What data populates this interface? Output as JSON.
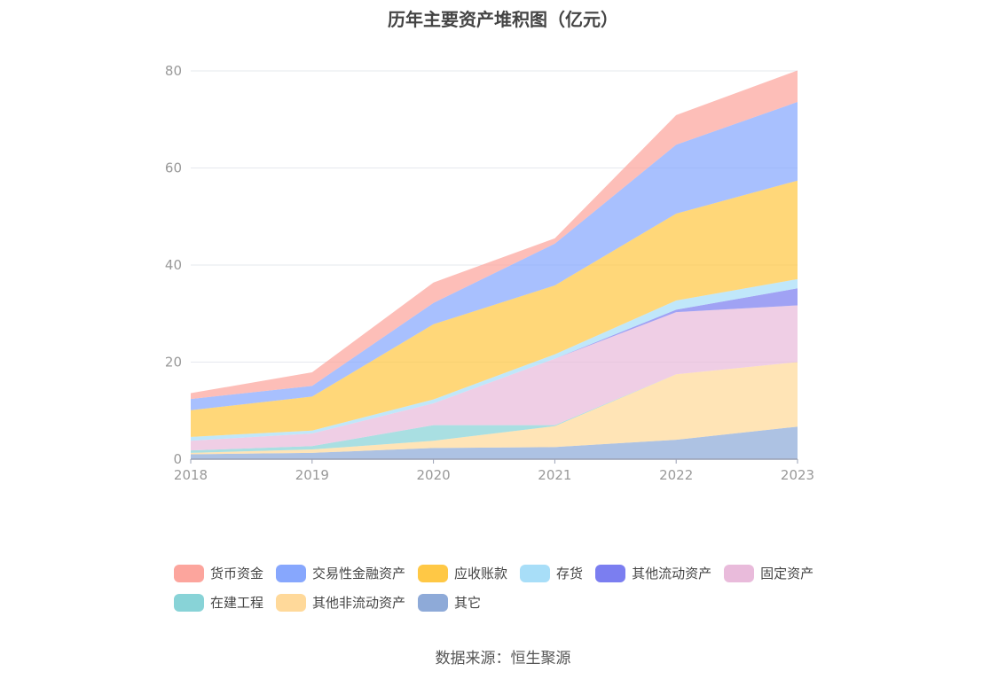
{
  "title": "历年主要资产堆积图（亿元）",
  "source": "数据来源：恒生聚源",
  "chart_data": {
    "type": "area",
    "stacked": true,
    "title": "历年主要资产堆积图（亿元）",
    "xlabel": "",
    "ylabel": "",
    "ylim": [
      0,
      80
    ],
    "yticks": [
      0,
      20,
      40,
      60,
      80
    ],
    "grid": true,
    "legend_position": "bottom",
    "categories": [
      "2018",
      "2019",
      "2020",
      "2021",
      "2022",
      "2023"
    ],
    "series": [
      {
        "name": "其它",
        "color": "#8eaad8",
        "values": [
          1.0,
          1.3,
          2.3,
          2.5,
          4.0,
          6.7
        ]
      },
      {
        "name": "其他非流动资产",
        "color": "#ffd99a",
        "values": [
          0.3,
          0.7,
          1.5,
          4.3,
          13.5,
          13.3
        ]
      },
      {
        "name": "在建工程",
        "color": "#88d3d7",
        "values": [
          0.5,
          0.7,
          3.2,
          0.2,
          0.0,
          0.0
        ]
      },
      {
        "name": "固定资产",
        "color": "#e9bbdb",
        "values": [
          2.0,
          2.6,
          4.5,
          13.7,
          12.8,
          11.7
        ]
      },
      {
        "name": "其他流动资产",
        "color": "#7b7ef0",
        "values": [
          0.0,
          0.0,
          0.0,
          0.0,
          0.5,
          3.5
        ]
      },
      {
        "name": "存货",
        "color": "#a8def8",
        "values": [
          0.8,
          0.6,
          0.8,
          0.9,
          1.9,
          1.9
        ]
      },
      {
        "name": "应收账款",
        "color": "#ffc845",
        "values": [
          5.5,
          7.0,
          15.5,
          14.2,
          17.9,
          20.3
        ]
      },
      {
        "name": "交易性金融资产",
        "color": "#87a7fd",
        "values": [
          2.3,
          2.2,
          4.4,
          8.6,
          14.2,
          16.2
        ]
      },
      {
        "name": "货币资金",
        "color": "#fca59d",
        "values": [
          1.2,
          2.8,
          4.2,
          1.1,
          6.1,
          6.5
        ]
      }
    ]
  },
  "legend": [
    [
      {
        "name": "货币资金",
        "color": "#fca59d"
      },
      {
        "name": "交易性金融资产",
        "color": "#87a7fd"
      },
      {
        "name": "应收账款",
        "color": "#ffc845"
      },
      {
        "name": "存货",
        "color": "#a8def8"
      },
      {
        "name": "其他流动资产",
        "color": "#7b7ef0"
      },
      {
        "name": "固定资产",
        "color": "#e9bbdb"
      }
    ],
    [
      {
        "name": "在建工程",
        "color": "#88d3d7"
      },
      {
        "name": "其他非流动资产",
        "color": "#ffd99a"
      },
      {
        "name": "其它",
        "color": "#8eaad8"
      }
    ]
  ]
}
